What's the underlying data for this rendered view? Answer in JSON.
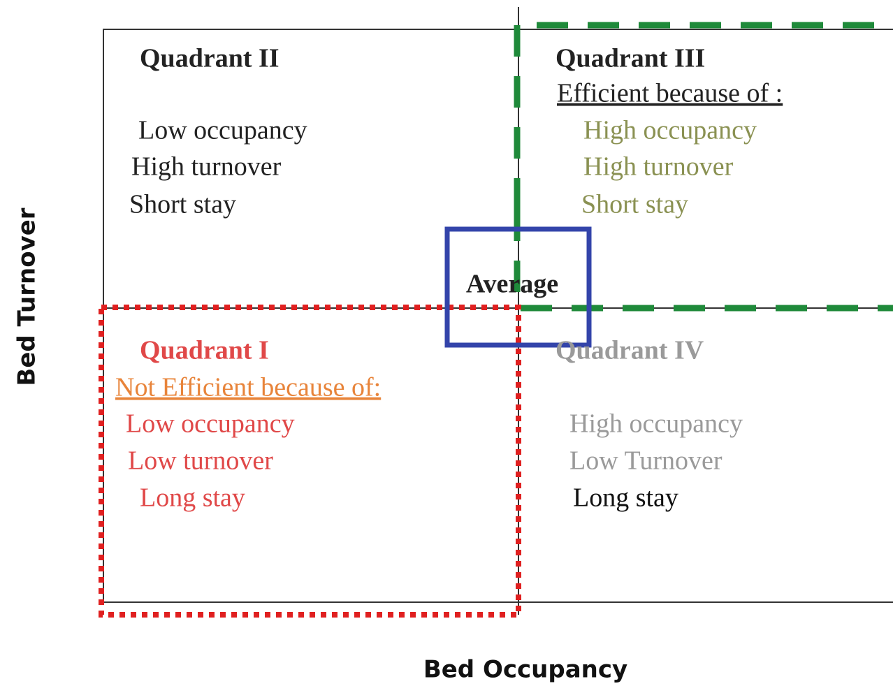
{
  "diagram": {
    "y_axis_label": "Bed Turnover",
    "x_axis_label": "Bed Occupancy",
    "center_label": "Average",
    "quadrants": [
      {
        "title": "Quadrant II",
        "items": [
          "Low occupancy",
          "High turnover",
          "Short stay"
        ]
      },
      {
        "title": "Quadrant III",
        "subtitle": "Efficient because of :",
        "items": [
          "High occupancy",
          "High turnover",
          "Short stay"
        ]
      },
      {
        "title": "Quadrant I",
        "subtitle": "Not Efficient because of:",
        "items": [
          "Low occupancy",
          "Low turnover",
          "Long stay"
        ]
      },
      {
        "title": "Quadrant IV",
        "items": [
          "High occupancy",
          "Low Turnover",
          "Long stay"
        ]
      }
    ]
  }
}
